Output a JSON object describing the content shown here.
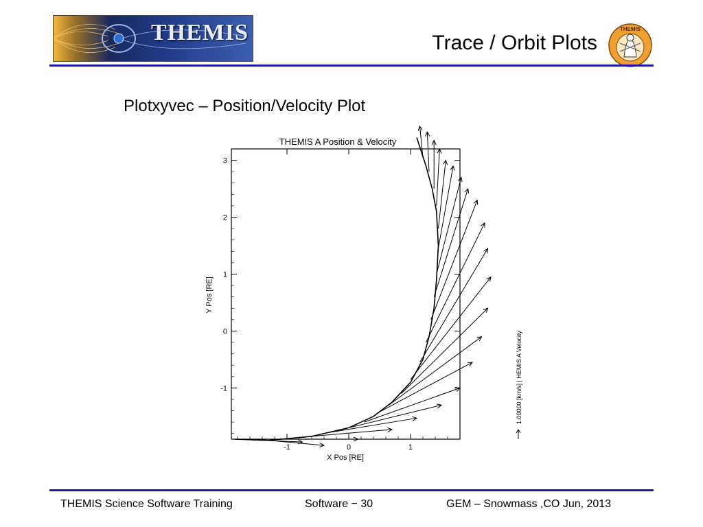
{
  "header": {
    "logo_text": "THEMIS",
    "title": "Trace / Orbit Plots",
    "mascot_text": "THEMIS"
  },
  "slide": {
    "subtitle": "Plotxyvec – Position/Velocity Plot"
  },
  "chart_data": {
    "type": "scatter",
    "title": "THEMIS A Position & Velocity",
    "xlabel": "X Pos [RE]",
    "ylabel": "Y Pos [RE]",
    "xlim": [
      -1.9,
      1.8
    ],
    "ylim": [
      -1.9,
      3.2
    ],
    "x_ticks": [
      "-1",
      "0",
      "1"
    ],
    "y_ticks": [
      "-1",
      "0",
      "1",
      "2",
      "3"
    ],
    "legend_label": "1.00000 [km/s] | HEMIS A Velocity",
    "trajectory": {
      "x": [
        -1.85,
        -1.3,
        -0.6,
        0.0,
        0.4,
        0.7,
        1.0,
        1.2,
        1.3,
        1.38,
        1.42,
        1.45,
        1.42,
        1.35,
        1.25,
        1.1
      ],
      "y": [
        -1.9,
        -1.92,
        -1.85,
        -1.7,
        -1.5,
        -1.25,
        -0.9,
        -0.5,
        -0.1,
        0.4,
        0.9,
        1.5,
        2.1,
        2.5,
        2.9,
        3.4
      ]
    },
    "vectors": [
      {
        "x": -1.85,
        "y": -1.9,
        "dx": 1.1,
        "dy": -0.05
      },
      {
        "x": -1.4,
        "y": -1.91,
        "dx": 1.0,
        "dy": -0.1
      },
      {
        "x": -1.0,
        "y": -1.9,
        "dx": 1.15,
        "dy": 0.0
      },
      {
        "x": -0.6,
        "y": -1.85,
        "dx": 1.3,
        "dy": 0.12
      },
      {
        "x": -0.3,
        "y": -1.78,
        "dx": 1.4,
        "dy": 0.25
      },
      {
        "x": 0.0,
        "y": -1.7,
        "dx": 1.5,
        "dy": 0.4
      },
      {
        "x": 0.25,
        "y": -1.6,
        "dx": 1.55,
        "dy": 0.6
      },
      {
        "x": 0.45,
        "y": -1.45,
        "dx": 1.55,
        "dy": 0.9
      },
      {
        "x": 0.65,
        "y": -1.3,
        "dx": 1.5,
        "dy": 1.2
      },
      {
        "x": 0.85,
        "y": -1.1,
        "dx": 1.4,
        "dy": 1.5
      },
      {
        "x": 1.0,
        "y": -0.85,
        "dx": 1.3,
        "dy": 1.8
      },
      {
        "x": 1.15,
        "y": -0.55,
        "dx": 1.1,
        "dy": 2.0
      },
      {
        "x": 1.25,
        "y": -0.2,
        "dx": 0.95,
        "dy": 2.1
      },
      {
        "x": 1.33,
        "y": 0.2,
        "dx": 0.75,
        "dy": 2.1
      },
      {
        "x": 1.38,
        "y": 0.6,
        "dx": 0.55,
        "dy": 1.9
      },
      {
        "x": 1.42,
        "y": 1.0,
        "dx": 0.4,
        "dy": 1.7
      },
      {
        "x": 1.44,
        "y": 1.4,
        "dx": 0.25,
        "dy": 1.5
      },
      {
        "x": 1.45,
        "y": 1.8,
        "dx": 0.12,
        "dy": 1.2
      },
      {
        "x": 1.42,
        "y": 2.2,
        "dx": 0.05,
        "dy": 1.0
      },
      {
        "x": 1.38,
        "y": 2.5,
        "dx": 0.0,
        "dy": 0.85
      },
      {
        "x": 1.3,
        "y": 2.8,
        "dx": -0.03,
        "dy": 0.7
      },
      {
        "x": 1.2,
        "y": 3.05,
        "dx": -0.05,
        "dy": 0.55
      }
    ]
  },
  "footer": {
    "left": "THEMIS Science Software Training",
    "center": "Software − 30",
    "right": "GEM – Snowmass ,CO  Jun, 2013"
  },
  "colors": {
    "rule": "#1a1aa0",
    "mascot_bg": "#f0a030"
  }
}
